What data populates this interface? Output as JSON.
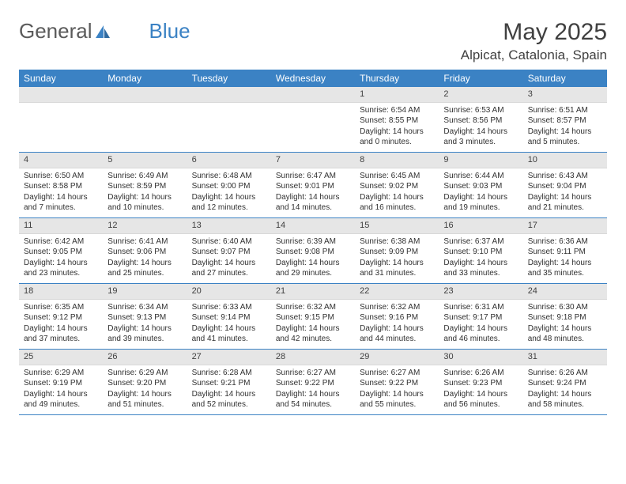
{
  "logo": {
    "text1": "General",
    "text2": "Blue"
  },
  "title": "May 2025",
  "location": "Alpicat, Catalonia, Spain",
  "colors": {
    "header_bg": "#3b82c4",
    "header_text": "#ffffff",
    "daynum_bg": "#e6e6e6",
    "border": "#3b82c4",
    "body_text": "#303030"
  },
  "dow": [
    "Sunday",
    "Monday",
    "Tuesday",
    "Wednesday",
    "Thursday",
    "Friday",
    "Saturday"
  ],
  "weeks": [
    [
      {
        "n": "",
        "empty": true
      },
      {
        "n": "",
        "empty": true
      },
      {
        "n": "",
        "empty": true
      },
      {
        "n": "",
        "empty": true
      },
      {
        "n": "1",
        "sr": "6:54 AM",
        "ss": "8:55 PM",
        "dl": "14 hours and 0 minutes."
      },
      {
        "n": "2",
        "sr": "6:53 AM",
        "ss": "8:56 PM",
        "dl": "14 hours and 3 minutes."
      },
      {
        "n": "3",
        "sr": "6:51 AM",
        "ss": "8:57 PM",
        "dl": "14 hours and 5 minutes."
      }
    ],
    [
      {
        "n": "4",
        "sr": "6:50 AM",
        "ss": "8:58 PM",
        "dl": "14 hours and 7 minutes."
      },
      {
        "n": "5",
        "sr": "6:49 AM",
        "ss": "8:59 PM",
        "dl": "14 hours and 10 minutes."
      },
      {
        "n": "6",
        "sr": "6:48 AM",
        "ss": "9:00 PM",
        "dl": "14 hours and 12 minutes."
      },
      {
        "n": "7",
        "sr": "6:47 AM",
        "ss": "9:01 PM",
        "dl": "14 hours and 14 minutes."
      },
      {
        "n": "8",
        "sr": "6:45 AM",
        "ss": "9:02 PM",
        "dl": "14 hours and 16 minutes."
      },
      {
        "n": "9",
        "sr": "6:44 AM",
        "ss": "9:03 PM",
        "dl": "14 hours and 19 minutes."
      },
      {
        "n": "10",
        "sr": "6:43 AM",
        "ss": "9:04 PM",
        "dl": "14 hours and 21 minutes."
      }
    ],
    [
      {
        "n": "11",
        "sr": "6:42 AM",
        "ss": "9:05 PM",
        "dl": "14 hours and 23 minutes."
      },
      {
        "n": "12",
        "sr": "6:41 AM",
        "ss": "9:06 PM",
        "dl": "14 hours and 25 minutes."
      },
      {
        "n": "13",
        "sr": "6:40 AM",
        "ss": "9:07 PM",
        "dl": "14 hours and 27 minutes."
      },
      {
        "n": "14",
        "sr": "6:39 AM",
        "ss": "9:08 PM",
        "dl": "14 hours and 29 minutes."
      },
      {
        "n": "15",
        "sr": "6:38 AM",
        "ss": "9:09 PM",
        "dl": "14 hours and 31 minutes."
      },
      {
        "n": "16",
        "sr": "6:37 AM",
        "ss": "9:10 PM",
        "dl": "14 hours and 33 minutes."
      },
      {
        "n": "17",
        "sr": "6:36 AM",
        "ss": "9:11 PM",
        "dl": "14 hours and 35 minutes."
      }
    ],
    [
      {
        "n": "18",
        "sr": "6:35 AM",
        "ss": "9:12 PM",
        "dl": "14 hours and 37 minutes."
      },
      {
        "n": "19",
        "sr": "6:34 AM",
        "ss": "9:13 PM",
        "dl": "14 hours and 39 minutes."
      },
      {
        "n": "20",
        "sr": "6:33 AM",
        "ss": "9:14 PM",
        "dl": "14 hours and 41 minutes."
      },
      {
        "n": "21",
        "sr": "6:32 AM",
        "ss": "9:15 PM",
        "dl": "14 hours and 42 minutes."
      },
      {
        "n": "22",
        "sr": "6:32 AM",
        "ss": "9:16 PM",
        "dl": "14 hours and 44 minutes."
      },
      {
        "n": "23",
        "sr": "6:31 AM",
        "ss": "9:17 PM",
        "dl": "14 hours and 46 minutes."
      },
      {
        "n": "24",
        "sr": "6:30 AM",
        "ss": "9:18 PM",
        "dl": "14 hours and 48 minutes."
      }
    ],
    [
      {
        "n": "25",
        "sr": "6:29 AM",
        "ss": "9:19 PM",
        "dl": "14 hours and 49 minutes."
      },
      {
        "n": "26",
        "sr": "6:29 AM",
        "ss": "9:20 PM",
        "dl": "14 hours and 51 minutes."
      },
      {
        "n": "27",
        "sr": "6:28 AM",
        "ss": "9:21 PM",
        "dl": "14 hours and 52 minutes."
      },
      {
        "n": "28",
        "sr": "6:27 AM",
        "ss": "9:22 PM",
        "dl": "14 hours and 54 minutes."
      },
      {
        "n": "29",
        "sr": "6:27 AM",
        "ss": "9:22 PM",
        "dl": "14 hours and 55 minutes."
      },
      {
        "n": "30",
        "sr": "6:26 AM",
        "ss": "9:23 PM",
        "dl": "14 hours and 56 minutes."
      },
      {
        "n": "31",
        "sr": "6:26 AM",
        "ss": "9:24 PM",
        "dl": "14 hours and 58 minutes."
      }
    ]
  ],
  "labels": {
    "sunrise": "Sunrise:",
    "sunset": "Sunset:",
    "daylight": "Daylight:"
  }
}
